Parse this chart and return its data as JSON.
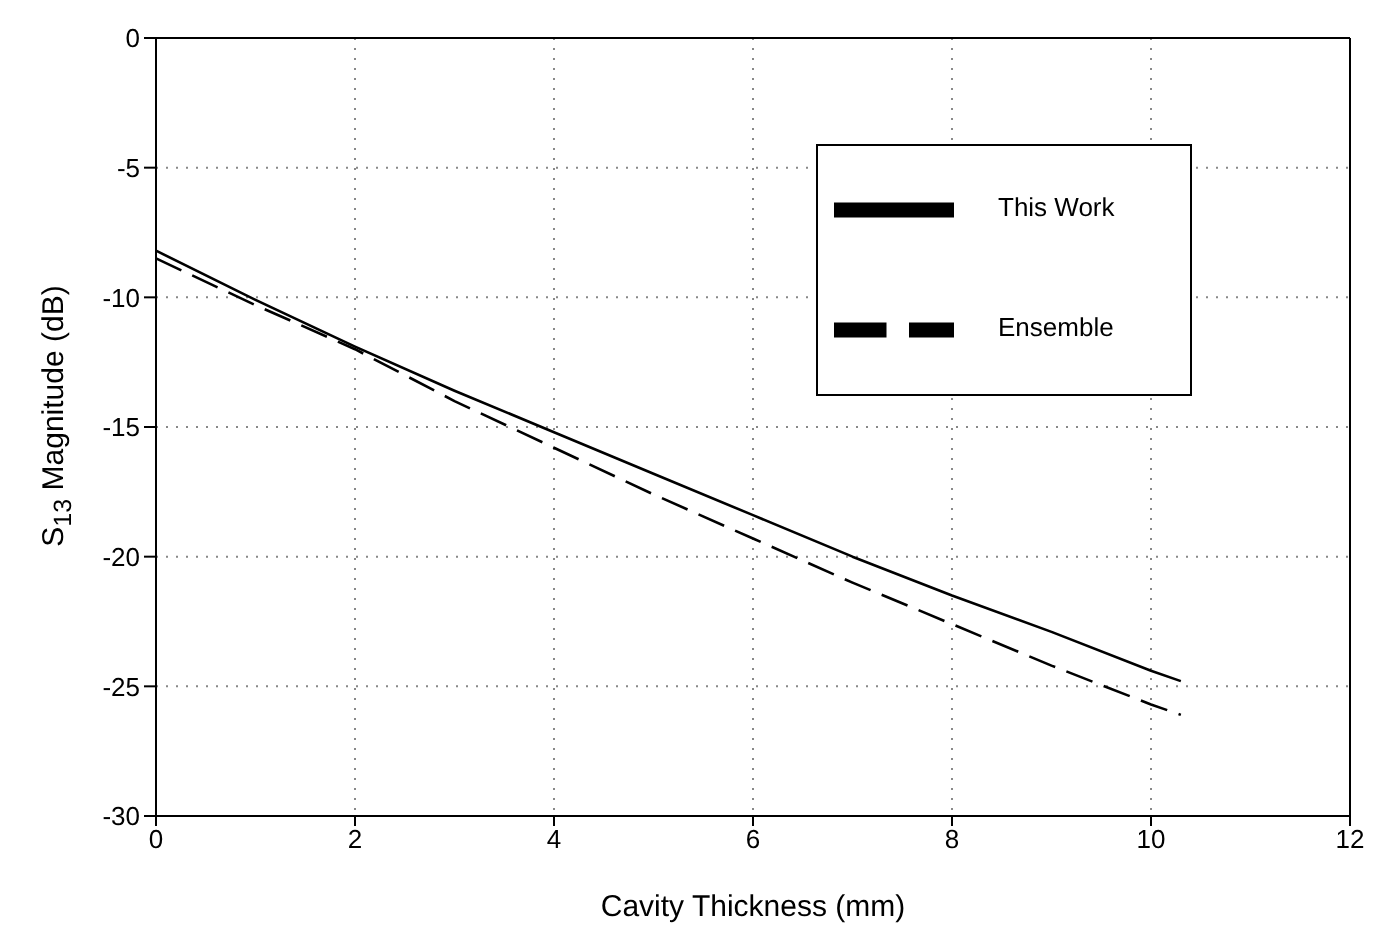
{
  "chart_data": {
    "type": "line",
    "xlabel": "Cavity Thickness (mm)",
    "ylabel": "S$_{13}$ Magnitude (dB)",
    "xlim": [
      0,
      12
    ],
    "xticks": [
      0,
      2,
      4,
      6,
      8,
      10,
      12
    ],
    "ylim": [
      -30,
      0
    ],
    "yticks": [
      -30,
      -25,
      -20,
      -15,
      -10,
      -5,
      0
    ],
    "grid": true,
    "legend": "top right",
    "marker": "none",
    "series": [
      {
        "name": "This Work",
        "color": "#000000",
        "line_style": "solid",
        "x": [
          0,
          1,
          2,
          3,
          4,
          5,
          6,
          7,
          8,
          9,
          10,
          10.3
        ],
        "values": [
          -8.2,
          -10.1,
          -11.9,
          -13.6,
          -15.2,
          -16.8,
          -18.4,
          -20,
          -21.5,
          -22.9,
          -24.4,
          -24.8
        ]
      },
      {
        "name": "Ensemble",
        "color": "#000000",
        "line_style": "dashed",
        "x": [
          0,
          1,
          2,
          3,
          4,
          5,
          6,
          7,
          8,
          9,
          10,
          10.3
        ],
        "values": [
          -8.5,
          -10.3,
          -12,
          -14,
          -15.8,
          -17.6,
          -19.3,
          -21,
          -22.6,
          -24.2,
          -25.7,
          -26.1
        ]
      }
    ]
  }
}
